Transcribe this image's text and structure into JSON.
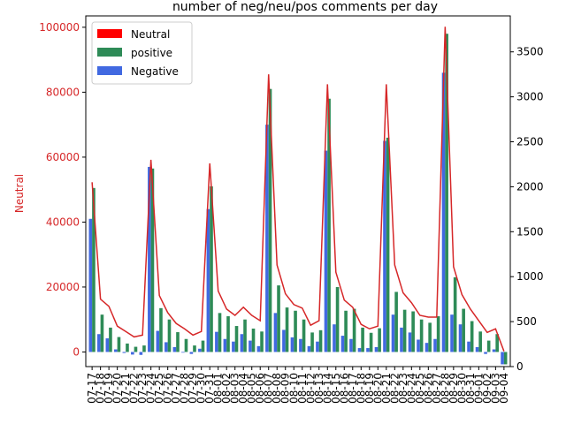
{
  "chart_data": {
    "type": "bar",
    "title": "number of neg/neu/pos comments per day",
    "ylabel_left": "Neutral",
    "ylabel_right": "",
    "left_axis_color": "#d62728",
    "y_left_lim": [
      -4500,
      103500
    ],
    "y_left_ticks": [
      0,
      20000,
      40000,
      60000,
      80000,
      100000
    ],
    "y_left_tick_labels": [
      "0",
      "20000",
      "40000",
      "60000",
      "80000",
      "100000"
    ],
    "y_right_lim": [
      0,
      3900
    ],
    "y_right_ticks": [
      0,
      500,
      1000,
      1500,
      2000,
      2500,
      3000,
      3500
    ],
    "y_right_tick_labels": [
      "0",
      "500",
      "1000",
      "1500",
      "2000",
      "2500",
      "3000",
      "3500"
    ],
    "legend": {
      "position": "top-left",
      "entries": [
        {
          "label": "Neutral",
          "color": "#ff0000"
        },
        {
          "label": "positive",
          "color": "#2e8b57"
        },
        {
          "label": "Negative",
          "color": "#4169e1"
        }
      ]
    },
    "categories": [
      "07-17",
      "07-18",
      "07-19",
      "07-20",
      "07-21",
      "07-22",
      "07-23",
      "07-24",
      "07-25",
      "07-26",
      "07-27",
      "07-28",
      "07-29",
      "07-30",
      "07-31",
      "08-01",
      "08-02",
      "08-03",
      "08-04",
      "08-05",
      "08-06",
      "08-07",
      "08-08",
      "08-09",
      "08-10",
      "08-11",
      "08-12",
      "08-13",
      "08-14",
      "08-15",
      "08-16",
      "08-17",
      "08-18",
      "08-19",
      "08-20",
      "08-21",
      "08-22",
      "08-23",
      "08-24",
      "08-25",
      "08-26",
      "08-27",
      "08-28",
      "08-29",
      "08-30",
      "08-31",
      "09-01",
      "09-02",
      "09-03",
      "09-04"
    ],
    "series": [
      {
        "name": "Negative",
        "axis": "left",
        "color": "#4169e1",
        "kind": "bar",
        "values": [
          41000,
          5500,
          4200,
          800,
          -300,
          -800,
          -900,
          57000,
          6500,
          3000,
          1500,
          -200,
          -600,
          1000,
          44000,
          6200,
          4000,
          3200,
          5500,
          3500,
          1800,
          70000,
          12000,
          6800,
          4500,
          4000,
          1800,
          3200,
          62000,
          8500,
          5000,
          4000,
          1200,
          1200,
          1500,
          65000,
          11500,
          7500,
          6000,
          3800,
          2800,
          4000,
          86000,
          11500,
          8500,
          3200,
          1500,
          -600,
          800,
          -3800
        ]
      },
      {
        "name": "positive",
        "axis": "left",
        "color": "#2e8b57",
        "kind": "bar",
        "values": [
          50500,
          11500,
          7500,
          4600,
          2600,
          1600,
          2000,
          56500,
          13500,
          10000,
          6100,
          4000,
          2000,
          3500,
          51000,
          12000,
          11000,
          8000,
          10000,
          7200,
          6300,
          81000,
          20500,
          13700,
          12700,
          10000,
          6000,
          6700,
          78000,
          20000,
          12700,
          13300,
          7500,
          5900,
          7300,
          66000,
          18500,
          13000,
          12500,
          10000,
          9000,
          11000,
          98000,
          23000,
          13300,
          9500,
          6300,
          3500,
          5500,
          -3800
        ]
      },
      {
        "name": "",
        "axis": "right",
        "color": "#d62728",
        "kind": "line",
        "values": [
          2050,
          750,
          670,
          450,
          390,
          330,
          350,
          2300,
          790,
          600,
          480,
          420,
          350,
          390,
          2260,
          840,
          640,
          570,
          660,
          570,
          510,
          3250,
          1130,
          810,
          690,
          650,
          460,
          510,
          3140,
          1050,
          740,
          660,
          470,
          420,
          450,
          3140,
          1130,
          820,
          710,
          570,
          550,
          550,
          3780,
          1110,
          800,
          640,
          510,
          380,
          420,
          170
        ]
      }
    ]
  }
}
